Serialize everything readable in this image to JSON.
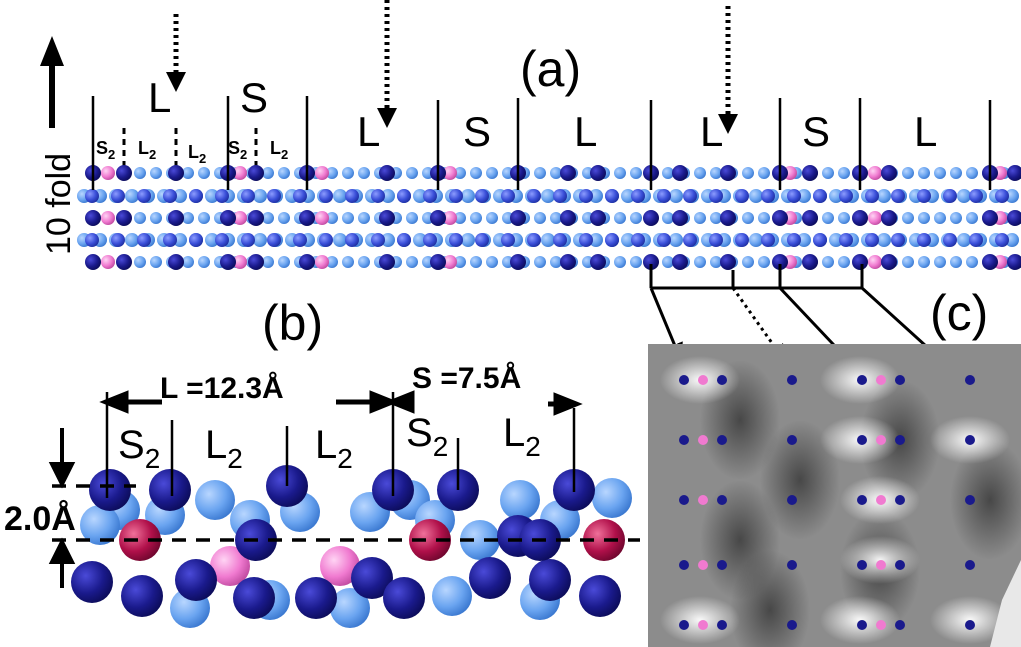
{
  "panel_labels": {
    "a": "(a)",
    "b": "(b)",
    "c": "(c)"
  },
  "axis_label": "10 fold",
  "panel_a": {
    "segment_labels": [
      "L",
      "S",
      "L",
      "S",
      "L",
      "L",
      "S",
      "L"
    ],
    "sub_labels": [
      {
        "base": "S",
        "sub": "2"
      },
      {
        "base": "L",
        "sub": "2"
      },
      {
        "base": "L",
        "sub": "2"
      },
      {
        "base": "S",
        "sub": "2"
      },
      {
        "base": "L",
        "sub": "2"
      }
    ]
  },
  "panel_b": {
    "L_dim": "L =12.3Å",
    "S_dim": "S =7.5Å",
    "height_dim": "2.0Å",
    "sub_labels": [
      {
        "base": "S",
        "sub": "2"
      },
      {
        "base": "L",
        "sub": "2"
      },
      {
        "base": "L",
        "sub": "2"
      },
      {
        "base": "S",
        "sub": "2"
      },
      {
        "base": "L",
        "sub": "2"
      }
    ]
  },
  "colors": {
    "dark_atom": "#1a1a8c",
    "light_atom": "#6aa4f0",
    "mid_atom": "#3a4fd8",
    "pink_atom": "#f07ad0",
    "magenta_atom": "#b0104a",
    "stm_background": "#8c8c8c"
  }
}
